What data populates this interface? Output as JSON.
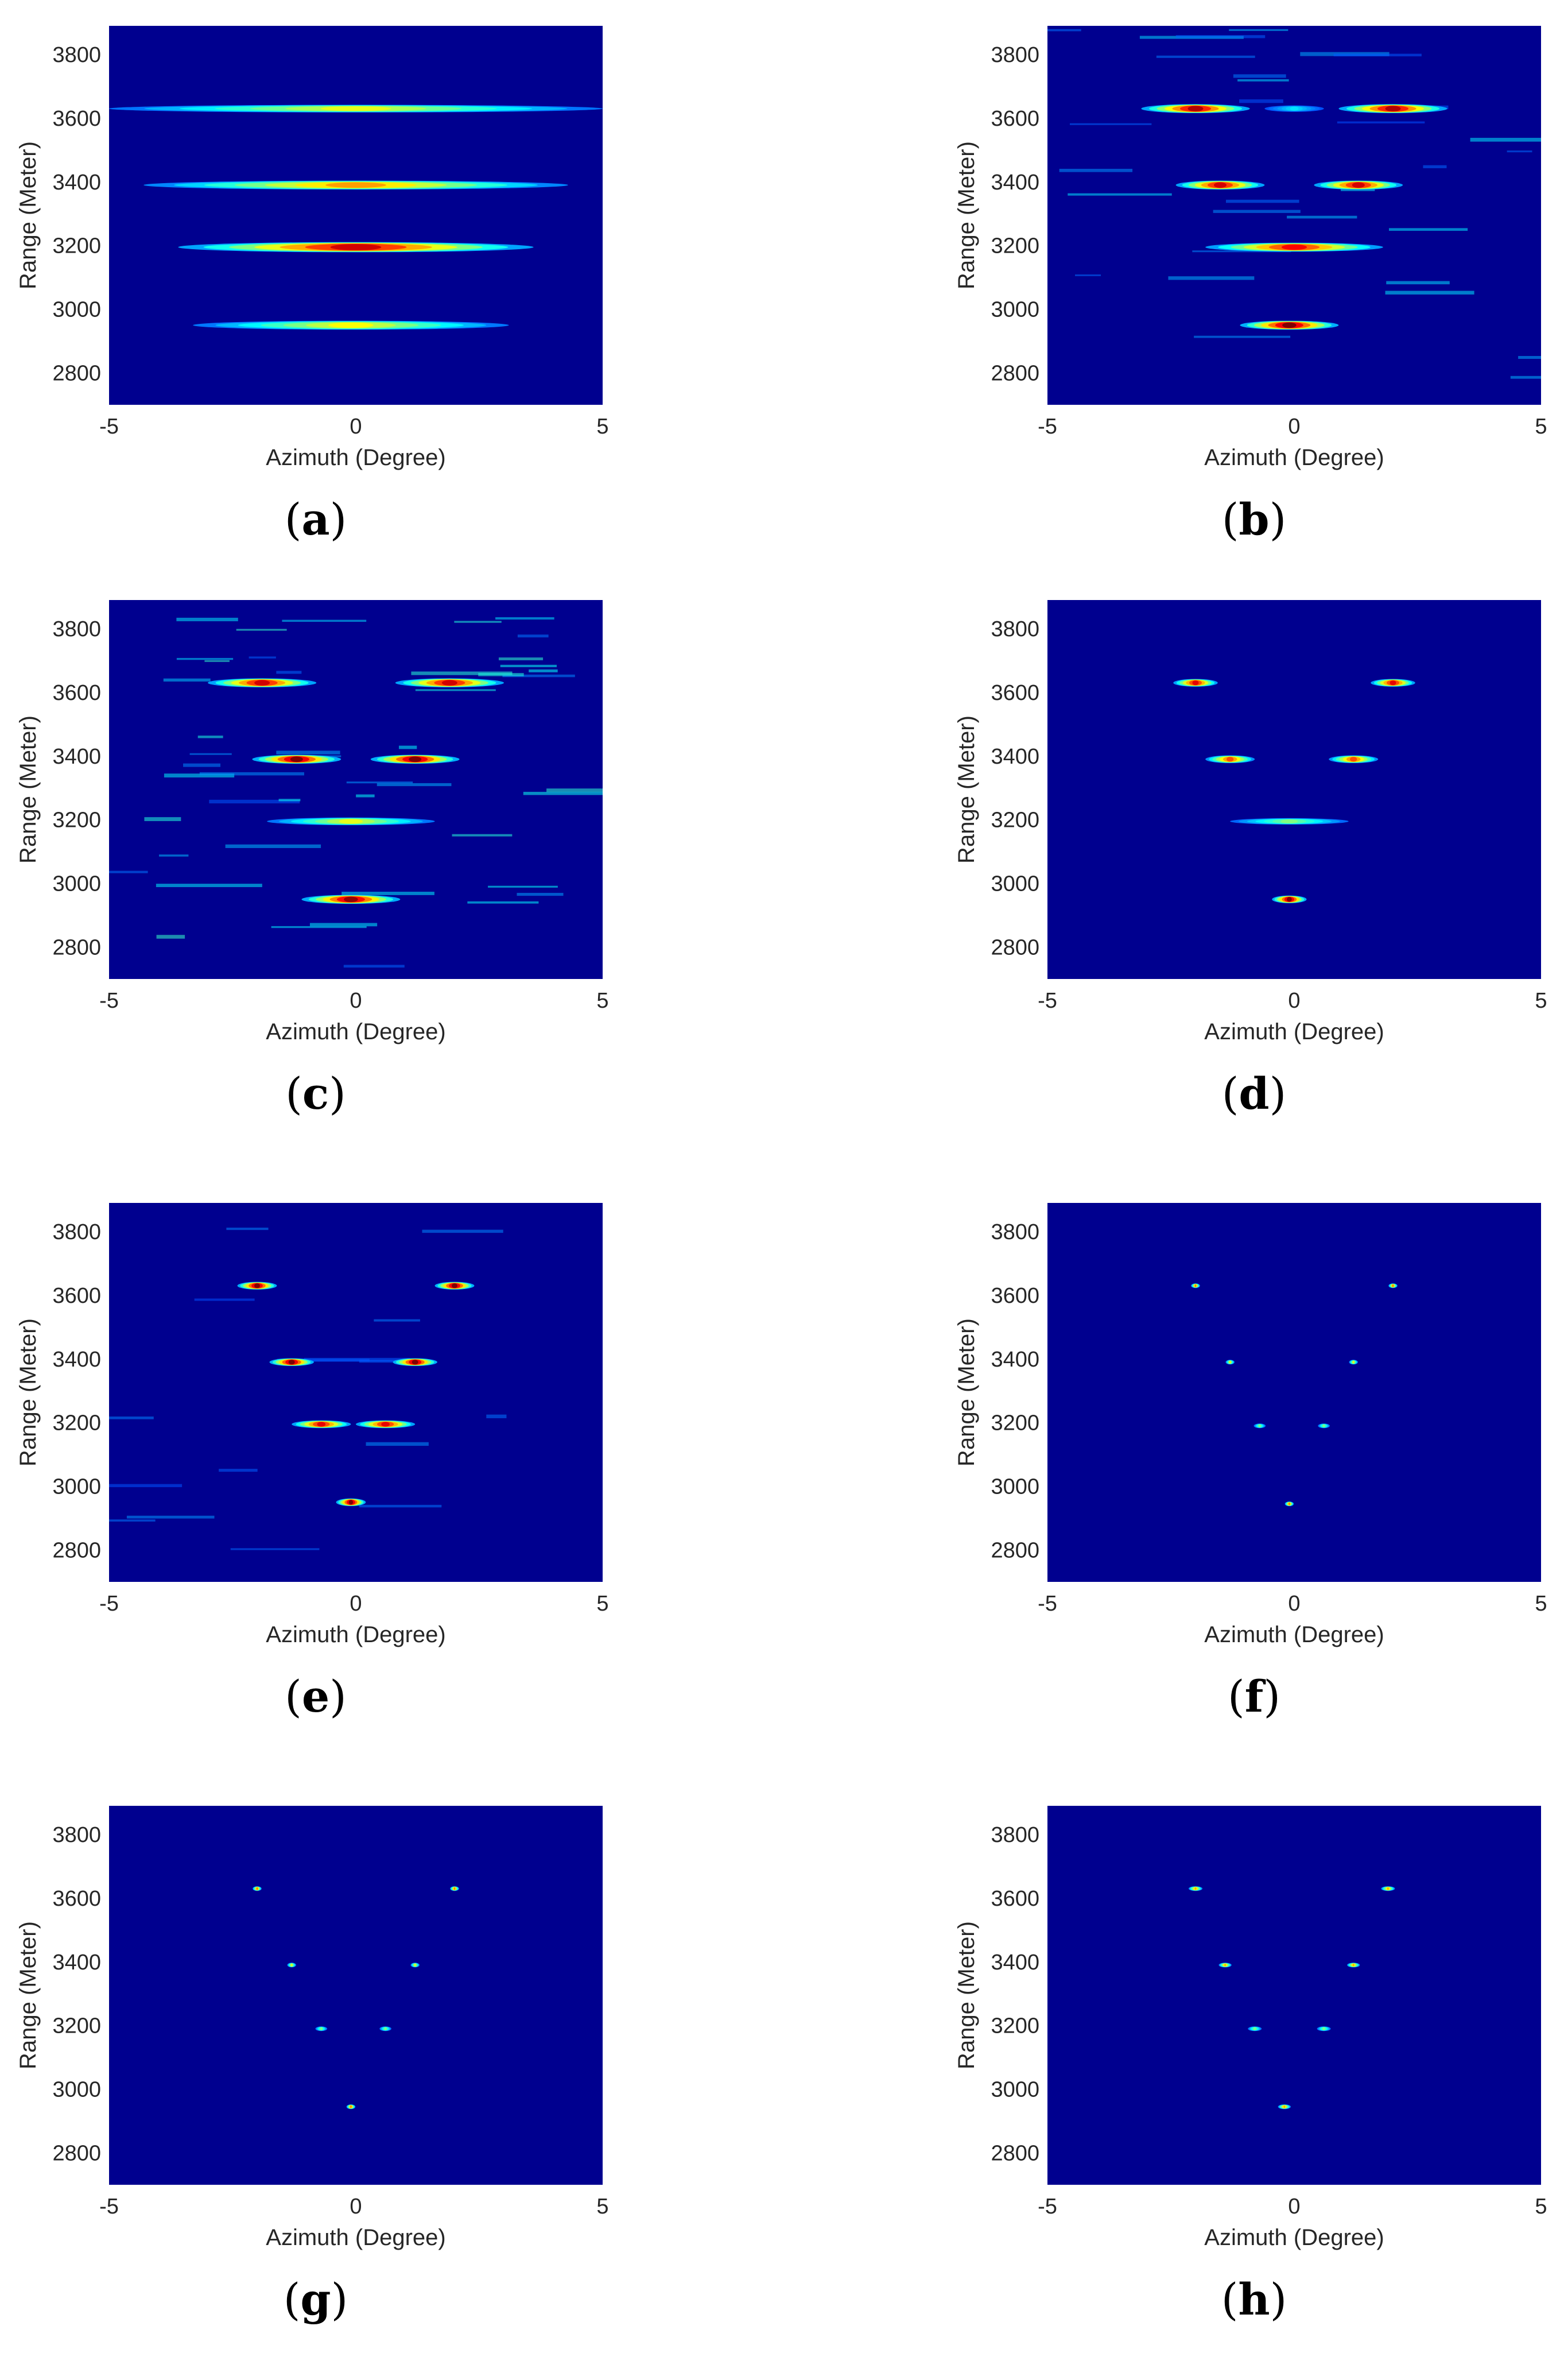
{
  "figure": {
    "chart_data": [
      {
        "type": "heatmap",
        "caption_letter": "a",
        "xlabel": "Azimuth (Degree)",
        "ylabel": "Range (Meter)",
        "xlim": [
          -5,
          5
        ],
        "ylim": [
          2700,
          3890
        ],
        "xticks": [
          -5,
          0,
          5
        ],
        "yticks": [
          2800,
          3000,
          3200,
          3400,
          3600,
          3800
        ],
        "colormap": "jet",
        "background_color": "#00008f",
        "blobs": [
          {
            "x": 0,
            "y": 3630,
            "x_halfwidth": 5.0,
            "y_halfwidth": 12,
            "level": 0.6
          },
          {
            "x": 0,
            "y": 3390,
            "x_halfwidth": 4.3,
            "y_halfwidth": 14,
            "level": 0.72
          },
          {
            "x": 0,
            "y": 3195,
            "x_halfwidth": 3.6,
            "y_halfwidth": 16,
            "level": 0.92
          },
          {
            "x": -0.1,
            "y": 2950,
            "x_halfwidth": 3.2,
            "y_halfwidth": 14,
            "level": 0.62
          }
        ]
      },
      {
        "type": "heatmap",
        "caption_letter": "b",
        "xlabel": "Azimuth (Degree)",
        "ylabel": "Range (Meter)",
        "xlim": [
          -5,
          5
        ],
        "ylim": [
          2700,
          3890
        ],
        "xticks": [
          -5,
          0,
          5
        ],
        "yticks": [
          2800,
          3000,
          3200,
          3400,
          3600,
          3800
        ],
        "colormap": "jet",
        "background_color": "#00008f",
        "noise": 0.12,
        "blobs": [
          {
            "x": -2.0,
            "y": 3630,
            "x_halfwidth": 1.1,
            "y_halfwidth": 14,
            "level": 0.95
          },
          {
            "x": 2.0,
            "y": 3630,
            "x_halfwidth": 1.1,
            "y_halfwidth": 14,
            "level": 0.95
          },
          {
            "x": 0,
            "y": 3630,
            "x_halfwidth": 0.6,
            "y_halfwidth": 10,
            "level": 0.35
          },
          {
            "x": -1.5,
            "y": 3390,
            "x_halfwidth": 0.9,
            "y_halfwidth": 14,
            "level": 0.92
          },
          {
            "x": 1.3,
            "y": 3390,
            "x_halfwidth": 0.9,
            "y_halfwidth": 14,
            "level": 0.92
          },
          {
            "x": 0,
            "y": 3195,
            "x_halfwidth": 1.8,
            "y_halfwidth": 14,
            "level": 0.88
          },
          {
            "x": -0.1,
            "y": 2950,
            "x_halfwidth": 1.0,
            "y_halfwidth": 14,
            "level": 1.0
          }
        ]
      },
      {
        "type": "heatmap",
        "caption_letter": "c",
        "xlabel": "Azimuth (Degree)",
        "ylabel": "Range (Meter)",
        "xlim": [
          -5,
          5
        ],
        "ylim": [
          2700,
          3890
        ],
        "xticks": [
          -5,
          0,
          5
        ],
        "yticks": [
          2800,
          3000,
          3200,
          3400,
          3600,
          3800
        ],
        "colormap": "jet",
        "background_color": "#00008f",
        "noise": 0.18,
        "blobs": [
          {
            "x": -1.9,
            "y": 3630,
            "x_halfwidth": 1.1,
            "y_halfwidth": 14,
            "level": 0.92
          },
          {
            "x": 1.9,
            "y": 3630,
            "x_halfwidth": 1.1,
            "y_halfwidth": 14,
            "level": 0.92
          },
          {
            "x": -1.2,
            "y": 3390,
            "x_halfwidth": 0.9,
            "y_halfwidth": 14,
            "level": 1.0
          },
          {
            "x": 1.2,
            "y": 3390,
            "x_halfwidth": 0.9,
            "y_halfwidth": 14,
            "level": 1.0
          },
          {
            "x": -0.1,
            "y": 3195,
            "x_halfwidth": 1.7,
            "y_halfwidth": 12,
            "level": 0.6
          },
          {
            "x": -0.1,
            "y": 2950,
            "x_halfwidth": 1.0,
            "y_halfwidth": 14,
            "level": 0.98
          }
        ]
      },
      {
        "type": "heatmap",
        "caption_letter": "d",
        "xlabel": "Azimuth (Degree)",
        "ylabel": "Range (Meter)",
        "xlim": [
          -5,
          5
        ],
        "ylim": [
          2700,
          3890
        ],
        "xticks": [
          -5,
          0,
          5
        ],
        "yticks": [
          2800,
          3000,
          3200,
          3400,
          3600,
          3800
        ],
        "colormap": "jet",
        "background_color": "#00008f",
        "blobs": [
          {
            "x": -2.0,
            "y": 3630,
            "x_halfwidth": 0.45,
            "y_halfwidth": 12,
            "level": 0.9
          },
          {
            "x": 2.0,
            "y": 3630,
            "x_halfwidth": 0.45,
            "y_halfwidth": 12,
            "level": 0.9
          },
          {
            "x": -1.3,
            "y": 3390,
            "x_halfwidth": 0.5,
            "y_halfwidth": 12,
            "level": 0.8
          },
          {
            "x": 1.2,
            "y": 3390,
            "x_halfwidth": 0.5,
            "y_halfwidth": 12,
            "level": 0.8
          },
          {
            "x": -0.1,
            "y": 3195,
            "x_halfwidth": 1.2,
            "y_halfwidth": 10,
            "level": 0.5
          },
          {
            "x": -0.1,
            "y": 2950,
            "x_halfwidth": 0.35,
            "y_halfwidth": 12,
            "level": 1.0
          }
        ]
      },
      {
        "type": "heatmap",
        "caption_letter": "e",
        "xlabel": "Azimuth (Degree)",
        "ylabel": "Range (Meter)",
        "xlim": [
          -5,
          5
        ],
        "ylim": [
          2700,
          3890
        ],
        "xticks": [
          -5,
          0,
          5
        ],
        "yticks": [
          2800,
          3000,
          3200,
          3400,
          3600,
          3800
        ],
        "colormap": "jet",
        "background_color": "#00008f",
        "noise": 0.06,
        "blobs": [
          {
            "x": -2.0,
            "y": 3630,
            "x_halfwidth": 0.4,
            "y_halfwidth": 12,
            "level": 1.0
          },
          {
            "x": 2.0,
            "y": 3630,
            "x_halfwidth": 0.4,
            "y_halfwidth": 12,
            "level": 1.0
          },
          {
            "x": -1.3,
            "y": 3390,
            "x_halfwidth": 0.45,
            "y_halfwidth": 12,
            "level": 1.0
          },
          {
            "x": 1.2,
            "y": 3390,
            "x_halfwidth": 0.45,
            "y_halfwidth": 12,
            "level": 1.0
          },
          {
            "x": -0.7,
            "y": 3195,
            "x_halfwidth": 0.6,
            "y_halfwidth": 12,
            "level": 0.9
          },
          {
            "x": 0.6,
            "y": 3195,
            "x_halfwidth": 0.6,
            "y_halfwidth": 12,
            "level": 0.9
          },
          {
            "x": -0.1,
            "y": 2950,
            "x_halfwidth": 0.3,
            "y_halfwidth": 12,
            "level": 1.0
          }
        ]
      },
      {
        "type": "heatmap",
        "caption_letter": "f",
        "xlabel": "Azimuth (Degree)",
        "ylabel": "Range (Meter)",
        "xlim": [
          -5,
          5
        ],
        "ylim": [
          2700,
          3890
        ],
        "xticks": [
          -5,
          0,
          5
        ],
        "yticks": [
          2800,
          3000,
          3200,
          3400,
          3600,
          3800
        ],
        "colormap": "jet",
        "background_color": "#00008f",
        "blobs": [
          {
            "x": -2.0,
            "y": 3630,
            "x_halfwidth": 0.09,
            "y_halfwidth": 6,
            "level": 0.75
          },
          {
            "x": 2.0,
            "y": 3630,
            "x_halfwidth": 0.09,
            "y_halfwidth": 6,
            "level": 0.75
          },
          {
            "x": -1.3,
            "y": 3390,
            "x_halfwidth": 0.09,
            "y_halfwidth": 6,
            "level": 0.6
          },
          {
            "x": 1.2,
            "y": 3390,
            "x_halfwidth": 0.09,
            "y_halfwidth": 6,
            "level": 0.6
          },
          {
            "x": -0.7,
            "y": 3190,
            "x_halfwidth": 0.12,
            "y_halfwidth": 5,
            "level": 0.5
          },
          {
            "x": 0.6,
            "y": 3190,
            "x_halfwidth": 0.12,
            "y_halfwidth": 5,
            "level": 0.5
          },
          {
            "x": -0.1,
            "y": 2945,
            "x_halfwidth": 0.09,
            "y_halfwidth": 6,
            "level": 0.75
          }
        ]
      },
      {
        "type": "heatmap",
        "caption_letter": "g",
        "xlabel": "Azimuth (Degree)",
        "ylabel": "Range (Meter)",
        "xlim": [
          -5,
          5
        ],
        "ylim": [
          2700,
          3890
        ],
        "xticks": [
          -5,
          0,
          5
        ],
        "yticks": [
          2800,
          3000,
          3200,
          3400,
          3600,
          3800
        ],
        "colormap": "jet",
        "background_color": "#00008f",
        "blobs": [
          {
            "x": -2.0,
            "y": 3630,
            "x_halfwidth": 0.09,
            "y_halfwidth": 6,
            "level": 0.75
          },
          {
            "x": 2.0,
            "y": 3630,
            "x_halfwidth": 0.09,
            "y_halfwidth": 6,
            "level": 0.75
          },
          {
            "x": -1.3,
            "y": 3390,
            "x_halfwidth": 0.09,
            "y_halfwidth": 6,
            "level": 0.6
          },
          {
            "x": 1.2,
            "y": 3390,
            "x_halfwidth": 0.09,
            "y_halfwidth": 6,
            "level": 0.6
          },
          {
            "x": -0.7,
            "y": 3190,
            "x_halfwidth": 0.12,
            "y_halfwidth": 5,
            "level": 0.5
          },
          {
            "x": 0.6,
            "y": 3190,
            "x_halfwidth": 0.12,
            "y_halfwidth": 5,
            "level": 0.5
          },
          {
            "x": -0.1,
            "y": 2945,
            "x_halfwidth": 0.09,
            "y_halfwidth": 6,
            "level": 0.75
          }
        ]
      },
      {
        "type": "heatmap",
        "caption_letter": "h",
        "xlabel": "Azimuth (Degree)",
        "ylabel": "Range (Meter)",
        "xlim": [
          -5,
          5
        ],
        "ylim": [
          2700,
          3890
        ],
        "xticks": [
          -5,
          0,
          5
        ],
        "yticks": [
          2800,
          3000,
          3200,
          3400,
          3600,
          3800
        ],
        "colormap": "jet",
        "background_color": "#00008f",
        "blobs": [
          {
            "x": -2.0,
            "y": 3630,
            "x_halfwidth": 0.14,
            "y_halfwidth": 6,
            "level": 0.7
          },
          {
            "x": 1.9,
            "y": 3630,
            "x_halfwidth": 0.14,
            "y_halfwidth": 6,
            "level": 0.7
          },
          {
            "x": -1.4,
            "y": 3390,
            "x_halfwidth": 0.13,
            "y_halfwidth": 6,
            "level": 0.7
          },
          {
            "x": 1.2,
            "y": 3390,
            "x_halfwidth": 0.13,
            "y_halfwidth": 6,
            "level": 0.7
          },
          {
            "x": -0.8,
            "y": 3190,
            "x_halfwidth": 0.14,
            "y_halfwidth": 5,
            "level": 0.5
          },
          {
            "x": 0.6,
            "y": 3190,
            "x_halfwidth": 0.14,
            "y_halfwidth": 5,
            "level": 0.5
          },
          {
            "x": -0.2,
            "y": 2945,
            "x_halfwidth": 0.13,
            "y_halfwidth": 6,
            "level": 0.7
          }
        ]
      }
    ]
  }
}
